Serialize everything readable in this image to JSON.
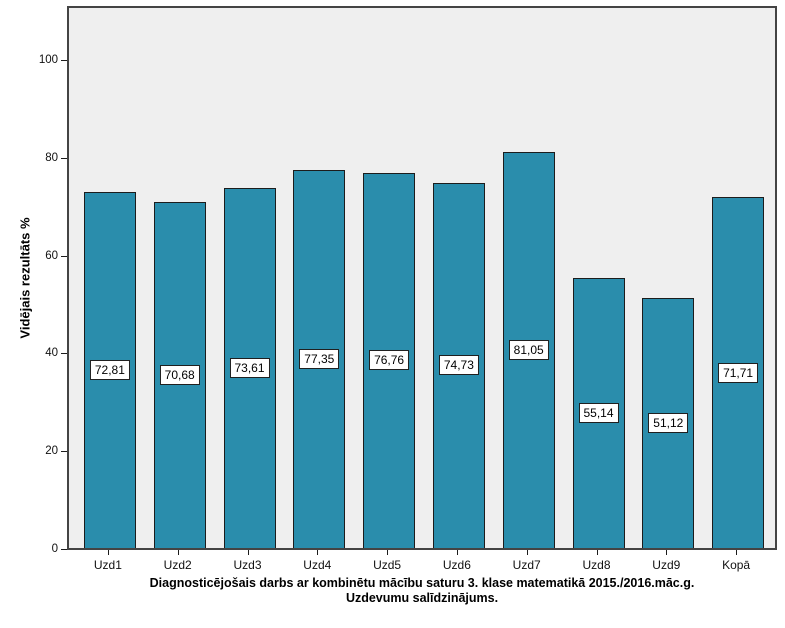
{
  "chart_data": {
    "type": "bar",
    "title_lines": [
      "Diagnosticējošais darbs ar kombinētu mācību saturu 3. klase matematikā 2015./2016.māc.g.",
      "Uzdevumu salīdzinājums."
    ],
    "ylabel": "Vidējais rezultāts %",
    "xlabel": "",
    "categories": [
      "Uzd1",
      "Uzd2",
      "Uzd3",
      "Uzd4",
      "Uzd5",
      "Uzd6",
      "Uzd7",
      "Uzd8",
      "Uzd9",
      "Kopā"
    ],
    "values": [
      72.81,
      70.68,
      73.61,
      77.35,
      76.76,
      74.73,
      81.05,
      55.14,
      51.12,
      71.71
    ],
    "value_labels": [
      "72,81",
      "70,68",
      "73,61",
      "77,35",
      "76,76",
      "74,73",
      "81,05",
      "55,14",
      "51,12",
      "71,71"
    ],
    "y_ticks": [
      0,
      20,
      40,
      60,
      80,
      100
    ],
    "ylim": [
      0,
      111
    ],
    "grid": false,
    "legend_position": "none",
    "colors": {
      "bar_fill": "#2A8DAC",
      "bar_border": "#1c1c1c",
      "plot_background": "#EFEFEF",
      "frame": "#444444",
      "value_box_background": "#ffffff",
      "value_box_border": "#1f1f1f",
      "figure_background": "#ffffff"
    }
  }
}
